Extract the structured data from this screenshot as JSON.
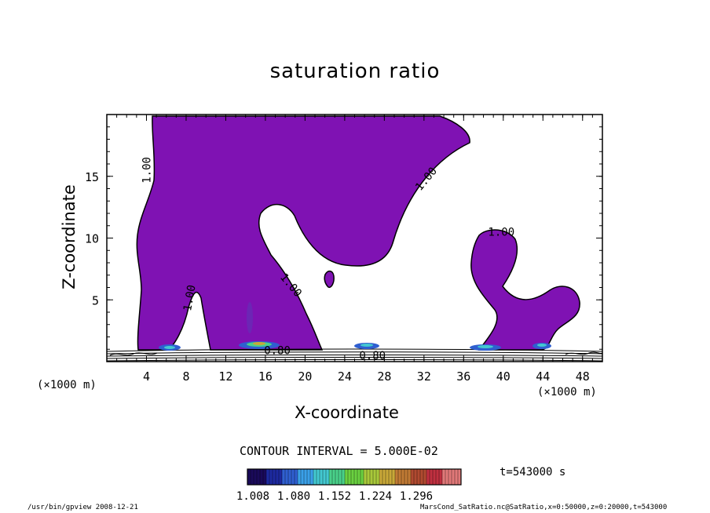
{
  "chart_data": {
    "type": "contour",
    "title": "saturation ratio",
    "xlabel": "X-coordinate",
    "ylabel": "Z-coordinate",
    "x_unit_left": "(×1000 m)",
    "x_unit_right": "(×1000 m)",
    "xlim": [
      0,
      50
    ],
    "ylim": [
      0,
      20
    ],
    "x_ticks": [
      4,
      8,
      12,
      16,
      20,
      24,
      28,
      32,
      36,
      40,
      44,
      48
    ],
    "y_ticks": [
      5,
      10,
      15
    ],
    "contour_labels": [
      {
        "text": "1.00",
        "x": 4.4,
        "y": 15.5,
        "angle": -90
      },
      {
        "text": "1.00",
        "x": 32.5,
        "y": 14.6,
        "angle": -50
      },
      {
        "text": "1.00",
        "x": 39.8,
        "y": 10.2,
        "angle": 0
      },
      {
        "text": "1.00",
        "x": 18.3,
        "y": 6.0,
        "angle": 50
      },
      {
        "text": "1.00",
        "x": 8.7,
        "y": 5.1,
        "angle": -80
      },
      {
        "text": "0.80",
        "x": 26.8,
        "y": 0.2,
        "angle": 0
      },
      {
        "text": "0.80",
        "x": 17.2,
        "y": 0.6,
        "angle": 0
      }
    ],
    "contour_interval": "CONTOUR INTERVAL = 5.000E-02",
    "colorbar": {
      "ticks": [
        "1.008",
        "1.080",
        "1.152",
        "1.224",
        "1.296"
      ],
      "colors": [
        "#1a0a5a",
        "#1d2aa0",
        "#2f5fd0",
        "#3aa0e8",
        "#43c8d0",
        "#49d08a",
        "#6ad040",
        "#a8c83a",
        "#c8a838",
        "#c07a34",
        "#b04a30",
        "#c03040",
        "#e07878"
      ]
    },
    "fill_color": "#7f12b3",
    "time": "t=543000 s"
  },
  "footer": {
    "left": "/usr/bin/gpview   2008-12-21",
    "right": "MarsCond_SatRatio.nc@SatRatio,x=0:50000,z=0:20000,t=543000"
  }
}
